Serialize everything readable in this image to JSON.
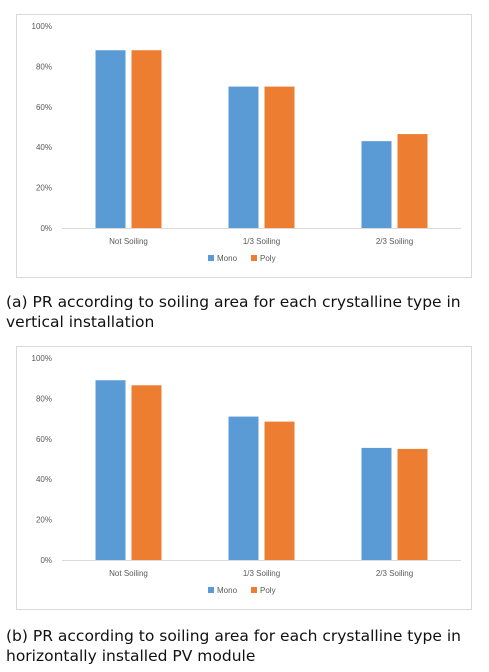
{
  "captions": [
    "(a) PR according to soiling area for each crystalline type in vertical installation",
    "(b) PR according to soiling area for each crystalline type in horizontally installed PV module"
  ],
  "colors": {
    "Mono": "#5b9bd5",
    "Poly": "#ed7d31",
    "axis": "#d9d9d9",
    "text": "#595959"
  },
  "chart_data": [
    {
      "type": "bar",
      "categories": [
        "Not Soiling",
        "1/3 Soiling",
        "2/3 Soiling"
      ],
      "series": [
        {
          "name": "Mono",
          "values": [
            88,
            70,
            43
          ]
        },
        {
          "name": "Poly",
          "values": [
            88,
            70,
            46.5
          ]
        }
      ],
      "yticks": [
        "0%",
        "20%",
        "40%",
        "60%",
        "80%",
        "100%"
      ],
      "ylim": [
        0,
        100
      ],
      "grid": false,
      "legend": "bottom-center"
    },
    {
      "type": "bar",
      "categories": [
        "Not Soiling",
        "1/3 Soiling",
        "2/3 Soiling"
      ],
      "series": [
        {
          "name": "Mono",
          "values": [
            89,
            71,
            55.5
          ]
        },
        {
          "name": "Poly",
          "values": [
            86.5,
            68.5,
            55
          ]
        }
      ],
      "yticks": [
        "0%",
        "20%",
        "40%",
        "60%",
        "80%",
        "100%"
      ],
      "ylim": [
        0,
        100
      ],
      "grid": false,
      "legend": "bottom-center"
    }
  ]
}
